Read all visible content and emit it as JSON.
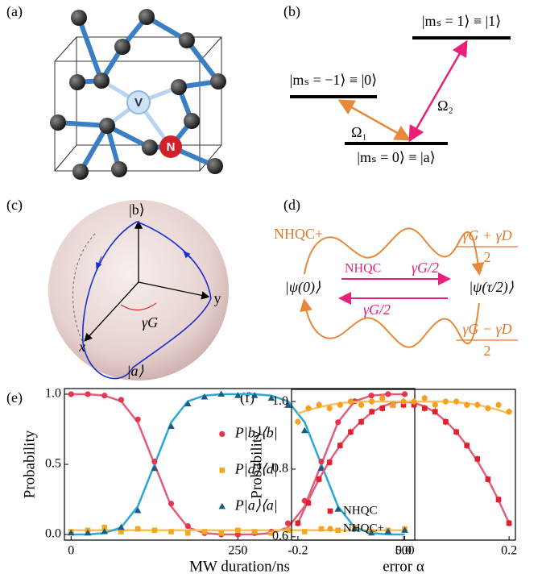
{
  "panels": [
    "(a)",
    "(b)",
    "(c)",
    "(d)",
    "(e)",
    "(f)"
  ],
  "a": {
    "atoms": [
      "V",
      "N"
    ]
  },
  "b": {
    "levels": [
      "|mₛ = −1⟩ ≡ |0⟩",
      "|mₛ = 1⟩ ≡ |1⟩",
      "|mₛ = 0⟩ ≡ |a⟩"
    ],
    "couplings": [
      "Ω₁",
      "Ω₂"
    ]
  },
  "c": {
    "labels": [
      "|b⟩",
      "|a⟩",
      "x",
      "y",
      "γG"
    ]
  },
  "d": {
    "paths": [
      "NHQC+",
      "NHQC"
    ],
    "states": [
      "|ψ(0)⟩",
      "|ψ(τ/2)⟩"
    ],
    "rates": [
      "γG/2",
      "γG/2"
    ],
    "fractions": [
      {
        "numerator": "γG + γD",
        "denominator": "2"
      },
      {
        "numerator": "γG − γD",
        "denominator": "2"
      }
    ]
  },
  "chart_data": [
    {
      "type": "scatter",
      "xlabel": "MW duration/ns",
      "ylabel": "Probability",
      "x": [
        0,
        25,
        50,
        75,
        100,
        125,
        150,
        175,
        200,
        225,
        250,
        275,
        300,
        325,
        350,
        375,
        400,
        425,
        450,
        475,
        500
      ],
      "xlim": [
        -10,
        515
      ],
      "ylim": [
        -0.04,
        1.04
      ],
      "xticks": [
        0,
        250,
        500
      ],
      "yticks": [
        {
          "value": 0,
          "label": "0.0"
        },
        0.5,
        {
          "value": 1,
          "label": "1.0"
        }
      ],
      "legend": "center",
      "series": [
        {
          "name": "P|b⟩⟨b|",
          "color": "#e8344e",
          "marker": "circle",
          "fit_color": "#e0607a",
          "values": [
            1.0,
            1.0,
            0.99,
            0.96,
            0.82,
            0.52,
            0.22,
            0.06,
            0.01,
            0.0,
            0.0,
            0.01,
            0.02,
            0.08,
            0.24,
            0.52,
            0.8,
            0.95,
            0.99,
            1.0,
            1.0
          ],
          "fit": [
            1.0,
            1.0,
            0.99,
            0.95,
            0.8,
            0.5,
            0.2,
            0.05,
            0.01,
            0,
            0,
            0,
            0.01,
            0.05,
            0.2,
            0.5,
            0.8,
            0.95,
            0.99,
            1.0,
            1.0
          ]
        },
        {
          "name": "P|d⟩⟨d|",
          "color": "#f5a623",
          "marker": "square",
          "fit_color": "#f8c060",
          "values": [
            0.02,
            0.03,
            0.05,
            0.02,
            0.04,
            0.03,
            0.02,
            0.01,
            0.02,
            0.01,
            0.03,
            0.02,
            0.01,
            0.03,
            0.02,
            0.04,
            0.03,
            0.05,
            0.02,
            0.03,
            0.04
          ],
          "fit": [
            0.03,
            0.03,
            0.03,
            0.03,
            0.03,
            0.03,
            0.03,
            0.03,
            0.03,
            0.03,
            0.03,
            0.03,
            0.03,
            0.03,
            0.03,
            0.03,
            0.03,
            0.03,
            0.03,
            0.03,
            0.03
          ]
        },
        {
          "name": "P|a⟩⟨a|",
          "color": "#1d5a80",
          "marker": "triangle",
          "fit_color": "#2aa8d8",
          "values": [
            0.01,
            0.01,
            0.02,
            0.05,
            0.17,
            0.47,
            0.77,
            0.93,
            0.98,
            1.0,
            0.99,
            0.99,
            0.97,
            0.92,
            0.74,
            0.47,
            0.18,
            0.04,
            0.01,
            0.02,
            0.03
          ],
          "fit": [
            0,
            0,
            0.01,
            0.05,
            0.2,
            0.5,
            0.8,
            0.95,
            0.99,
            1.0,
            1.0,
            1.0,
            0.99,
            0.95,
            0.8,
            0.5,
            0.2,
            0.05,
            0.01,
            0,
            0
          ]
        }
      ]
    },
    {
      "type": "scatter",
      "xlabel": "error α",
      "ylabel": "Probability",
      "x": [
        -0.2,
        -0.18,
        -0.16,
        -0.14,
        -0.12,
        -0.1,
        -0.08,
        -0.06,
        -0.04,
        -0.02,
        0,
        0.02,
        0.04,
        0.06,
        0.08,
        0.1,
        0.12,
        0.14,
        0.16,
        0.18,
        0.2
      ],
      "xlim": [
        -0.212,
        0.212
      ],
      "ylim": [
        0.59,
        1.036
      ],
      "xticks": [
        -0.2,
        {
          "value": 0,
          "label": "0.0"
        },
        0.2
      ],
      "yticks": [
        0.6,
        0.8,
        {
          "value": 1,
          "label": "1.0"
        }
      ],
      "legend": "lower left",
      "series": [
        {
          "name": "NHQC",
          "color": "#e02030",
          "marker": "square",
          "fit_color": "#e0607a",
          "values": [
            0.64,
            0.7,
            0.77,
            0.82,
            0.87,
            0.91,
            0.94,
            0.97,
            0.98,
            0.99,
            0.99,
            0.99,
            0.98,
            0.97,
            0.94,
            0.91,
            0.87,
            0.83,
            0.77,
            0.71,
            0.64
          ],
          "errors": [
            0.01,
            0.01,
            0.01,
            0.01,
            0.01,
            0.01,
            0.01,
            0.01,
            0.01,
            0.01,
            0.01,
            0.01,
            0.01,
            0.01,
            0.01,
            0.01,
            0.01,
            0.01,
            0.01,
            0.01,
            0.01
          ],
          "fit": [
            0.64,
            0.708,
            0.77,
            0.824,
            0.87,
            0.91,
            0.942,
            0.968,
            0.986,
            0.996,
            1.0,
            0.996,
            0.986,
            0.968,
            0.942,
            0.91,
            0.87,
            0.824,
            0.77,
            0.708,
            0.64
          ]
        },
        {
          "name": "NHQC+",
          "color": "#f5a020",
          "marker": "circle",
          "fit_color": "#f8c060",
          "values": [
            0.94,
            0.98,
            0.99,
            0.98,
            0.99,
            1.0,
            0.99,
            1.0,
            1.01,
            0.99,
            1.0,
            1.0,
            1.01,
            0.99,
            1.0,
            1.0,
            0.99,
            0.99,
            0.98,
            0.99,
            0.97
          ],
          "errors": [
            0.01,
            0.01,
            0.01,
            0.01,
            0.01,
            0.01,
            0.01,
            0.01,
            0.01,
            0.01,
            0.01,
            0.01,
            0.01,
            0.01,
            0.01,
            0.01,
            0.01,
            0.01,
            0.01,
            0.01,
            0.01
          ],
          "fit": [
            0.965,
            0.975,
            0.983,
            0.99,
            0.995,
            0.998,
            1.0,
            1.0,
            1.0,
            1.0,
            1.0,
            1.0,
            1.0,
            1.0,
            1.0,
            0.998,
            0.995,
            0.99,
            0.983,
            0.975,
            0.965
          ]
        }
      ]
    }
  ]
}
